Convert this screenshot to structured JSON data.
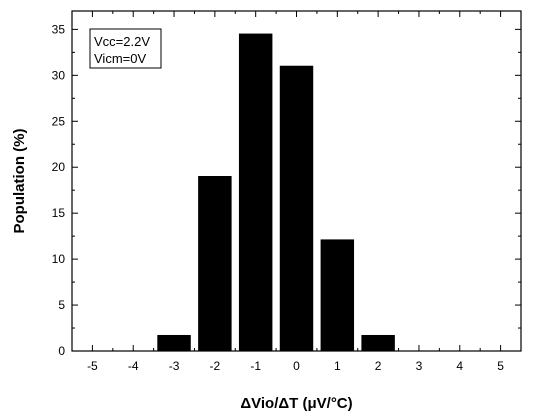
{
  "chart_data": {
    "type": "bar",
    "x": [
      -3,
      -2,
      -1,
      0,
      1,
      2
    ],
    "values": [
      1.7,
      19,
      34.5,
      31,
      12.1,
      1.7
    ],
    "xlabel": "ΔVio/ΔT (μV/°C)",
    "ylabel": "Population (%)",
    "xlim": [
      -5.5,
      5.5
    ],
    "ylim": [
      0,
      37
    ],
    "xticks": [
      -5,
      -4,
      -3,
      -2,
      -1,
      0,
      1,
      2,
      3,
      4,
      5
    ],
    "yticks": [
      0,
      5,
      10,
      15,
      20,
      25,
      30,
      35
    ],
    "bar_width": 0.8,
    "bar_color": "#000000",
    "grid": false,
    "legend": {
      "placement": "top-left",
      "lines": [
        "Vcc=2.2V",
        "Vicm=0V"
      ]
    }
  }
}
